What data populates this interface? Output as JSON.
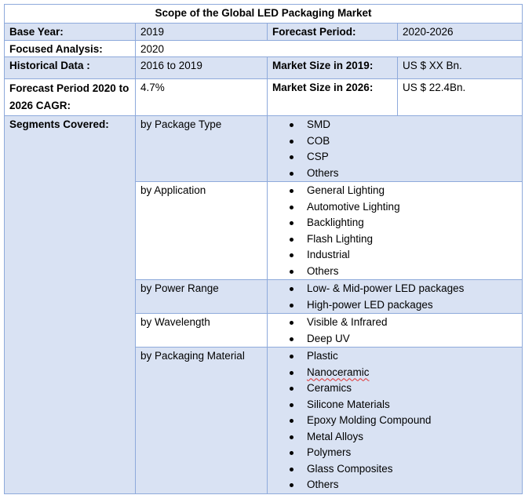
{
  "title": "Scope of the Global LED Packaging Market",
  "rows": {
    "base_year": {
      "label": "Base Year:",
      "value": "2019",
      "label2": "Forecast Period:",
      "value2": "2020-2026"
    },
    "focused": {
      "label": "Focused Analysis:",
      "value": "2020"
    },
    "historical": {
      "label": "Historical Data :",
      "value": "2016 to 2019",
      "label2": "Market Size in 2019:",
      "value2": "US $ XX Bn."
    },
    "forecast": {
      "label": "Forecast Period 2020 to 2026 CAGR:",
      "value": "4.7%",
      "label2": "Market Size in 2026:",
      "value2": "US $ 22.4Bn."
    }
  },
  "segments": {
    "label": "Segments Covered:",
    "groups": [
      {
        "name": "by Package Type",
        "items": [
          "SMD",
          "COB",
          "CSP",
          "Others"
        ]
      },
      {
        "name": "by Application",
        "items": [
          "General Lighting",
          "Automotive Lighting",
          "Backlighting",
          "Flash Lighting",
          "Industrial",
          "Others"
        ]
      },
      {
        "name": "by Power Range",
        "items": [
          "Low- & Mid-power LED packages",
          "High-power LED packages"
        ]
      },
      {
        "name": "by Wavelength",
        "items": [
          "Visible & Infrared",
          "Deep UV"
        ]
      },
      {
        "name": "by Packaging Material",
        "items": [
          "Plastic",
          "Nanoceramic",
          "Ceramics",
          "Silicone Materials",
          "Epoxy Molding Compound",
          "Metal Alloys",
          "Polymers",
          "Glass Composites",
          "Others"
        ]
      }
    ]
  }
}
